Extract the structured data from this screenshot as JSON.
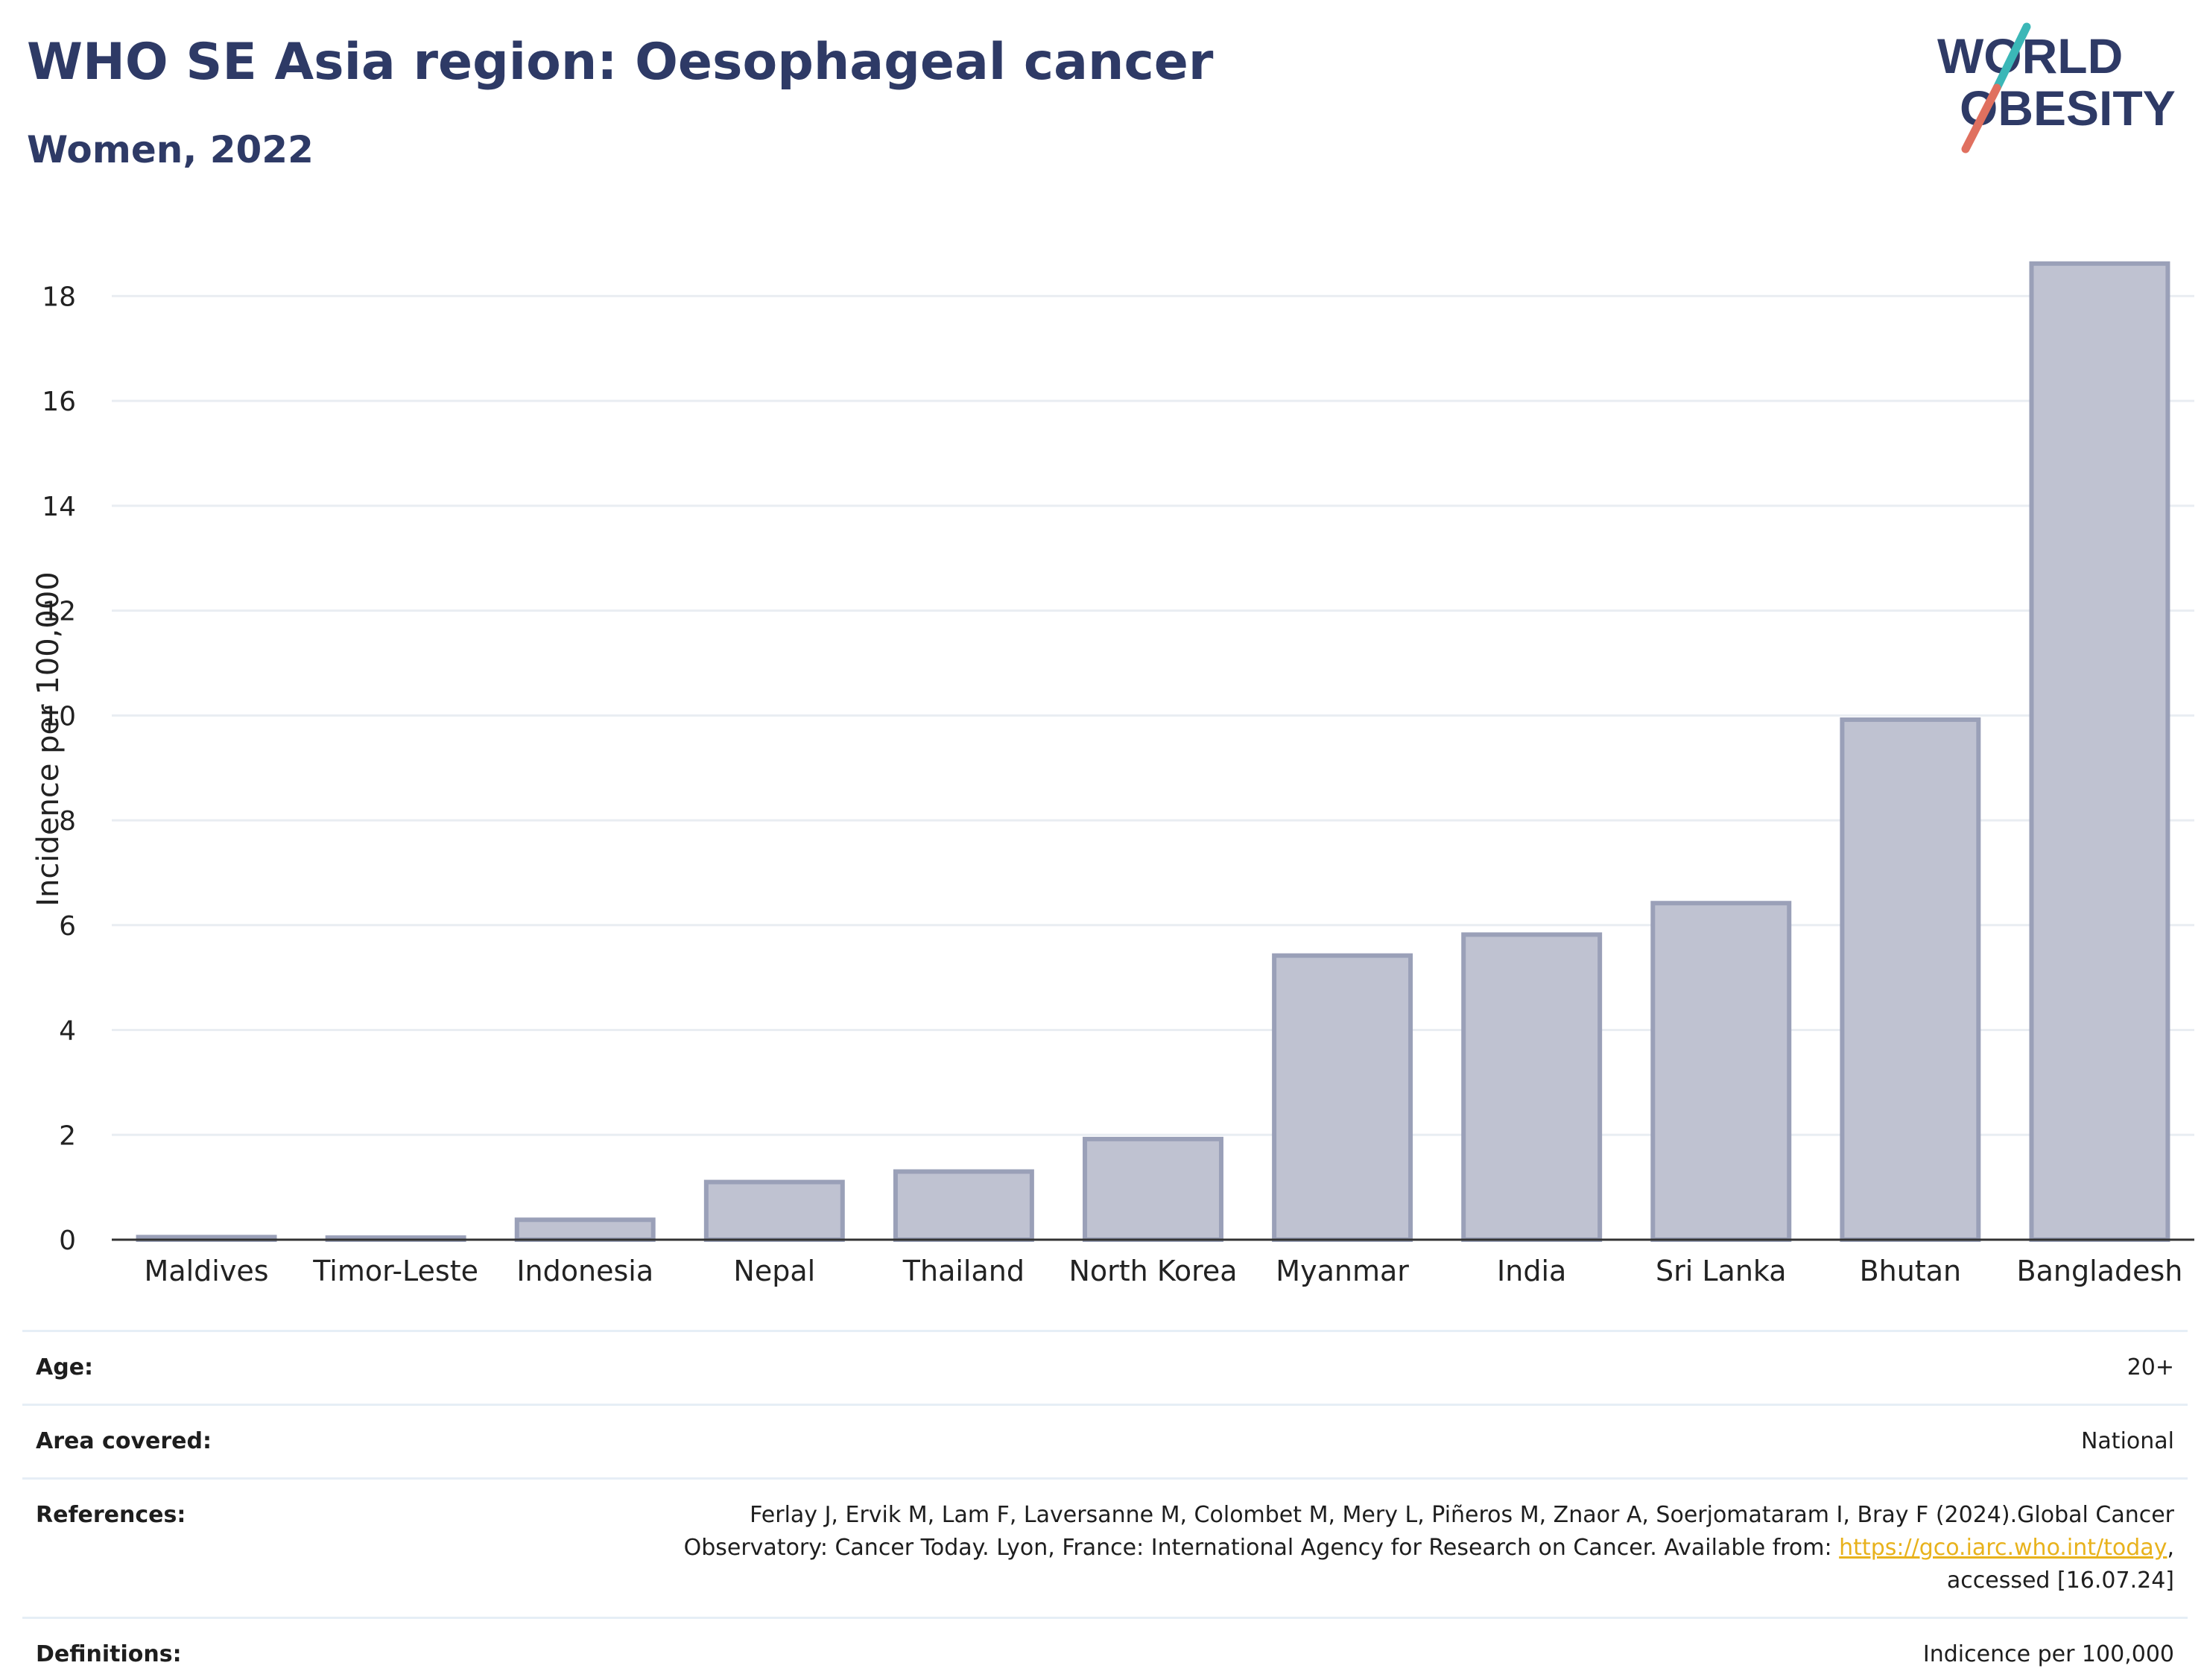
{
  "header": {
    "title": "WHO SE Asia region: Oesophageal cancer",
    "subtitle": "Women, 2022"
  },
  "logo": {
    "line1": "WORLD",
    "line2": "OBESITY",
    "text_color": "#2e3a66",
    "slash_top_color": "#3bb7b7",
    "slash_bottom_color": "#e0705f"
  },
  "chart_data": {
    "type": "bar",
    "categories": [
      "Maldives",
      "Timor-Leste",
      "Indonesia",
      "Nepal",
      "Thailand",
      "North Korea",
      "Myanmar",
      "India",
      "Sri Lanka",
      "Bhutan",
      "Bangladesh"
    ],
    "values": [
      0.05,
      0.04,
      0.38,
      1.1,
      1.3,
      1.92,
      5.42,
      5.82,
      6.42,
      9.92,
      18.62
    ],
    "title": "",
    "xlabel": "",
    "ylabel": "Incidence per 100,000",
    "ylim": [
      0,
      19.1
    ],
    "yticks": [
      0,
      2,
      4,
      6,
      8,
      10,
      12,
      14,
      16,
      18
    ],
    "grid": true,
    "legend": "none",
    "bar_fill": "#bfc2d1",
    "bar_stroke": "#9aa0b8",
    "axis_color": "#333333",
    "grid_color": "#e9edf2"
  },
  "meta": {
    "age_label": "Age:",
    "age_value": "20+",
    "area_label": "Area covered:",
    "area_value": "National",
    "references_label": "References:",
    "references_line1": "Ferlay J, Ervik M, Lam F, Laversanne M, Colombet M, Mery L, Piñeros M, Znaor A, Soerjomataram I, Bray F (2024).Global Cancer",
    "references_line2_pre": "Observatory: Cancer Today. Lyon, France: International Agency for Research on Cancer. Available from: ",
    "references_link": "https://gco.iarc.who.int/today",
    "references_line2_post": ",",
    "references_line3": "accessed [16.07.24]",
    "definitions_label": "Definitions:",
    "definitions_value": "Indicence per 100,000"
  }
}
